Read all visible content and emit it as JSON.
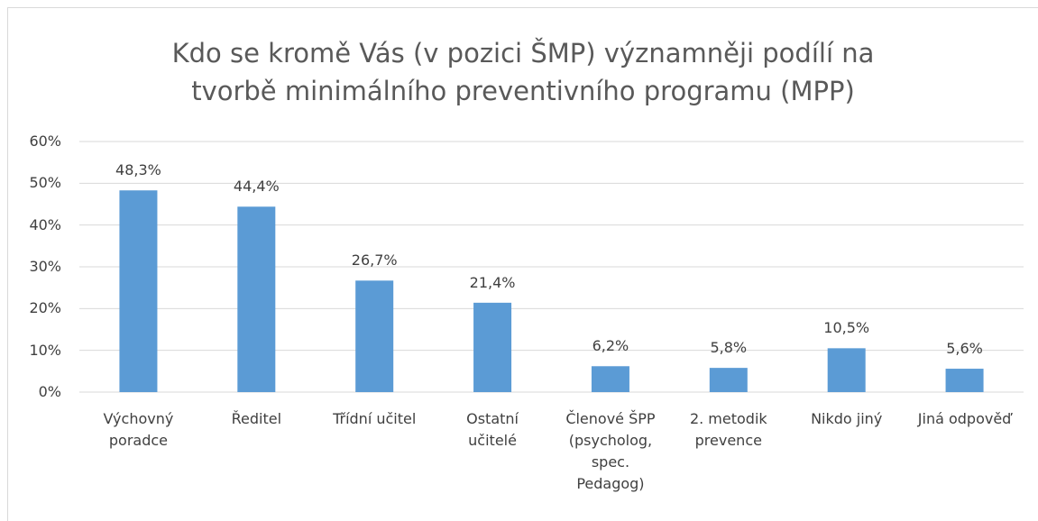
{
  "chart_data": {
    "type": "bar",
    "title": "Kdo se kromě Vás (v pozici ŠMP) významněji podílí na tvorbě minimálního preventivního programu (MPP)",
    "categories": [
      "Výchovný\nporadce",
      "Ředitel",
      "Třídní učitel",
      "Ostatní\nučitelé",
      "Členové ŠPP\n(psycholog,\nspec.\nPedagog)",
      "2. metodik\nprevence",
      "Nikdo jiný",
      "Jiná odpověď"
    ],
    "values": [
      48.3,
      44.4,
      26.7,
      21.4,
      6.2,
      5.8,
      10.5,
      5.6
    ],
    "value_labels": [
      "48,3%",
      "44,4%",
      "26,7%",
      "21,4%",
      "6,2%",
      "5,8%",
      "10,5%",
      "5,6%"
    ],
    "color": "#5b9bd5",
    "ylim": [
      0,
      60
    ],
    "yticks": [
      {
        "value": 0,
        "label": "0%"
      },
      {
        "value": 10,
        "label": "10%"
      },
      {
        "value": 20,
        "label": "20%"
      },
      {
        "value": 30,
        "label": "30%"
      },
      {
        "value": 40,
        "label": "40%"
      },
      {
        "value": 50,
        "label": "50%"
      },
      {
        "value": 60,
        "label": "60%"
      }
    ],
    "grid": true
  }
}
